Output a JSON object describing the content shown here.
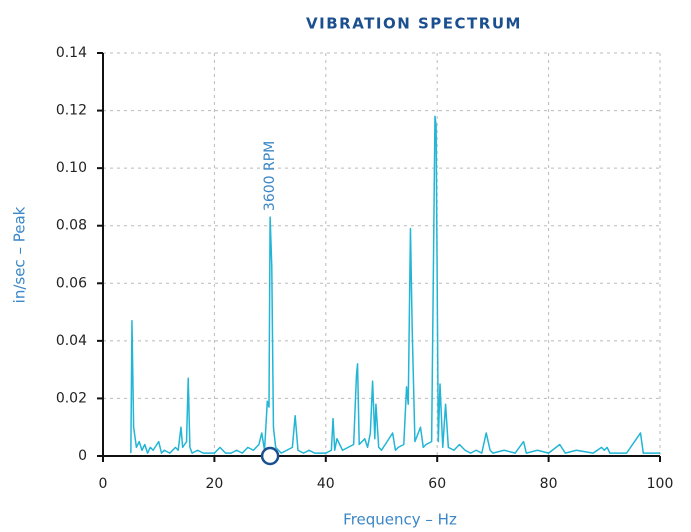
{
  "chart_data": {
    "type": "line",
    "title": "VIBRATION SPECTRUM",
    "xlabel": "Frequency – Hz",
    "ylabel": "in/sec – Peak",
    "color": "#22b5d6",
    "grid": true,
    "annotation": {
      "text": "3600 RPM",
      "x": 30
    },
    "xlim": [
      0,
      100
    ],
    "xticks": [
      0,
      20,
      40,
      60,
      80,
      100
    ],
    "ylim": [
      0,
      0.14
    ],
    "yticks": [
      0,
      0.02,
      0.04,
      0.06,
      0.08,
      {
        "value": 0.1,
        "label": "0.10"
      },
      0.12,
      0.14
    ],
    "x": [
      5,
      5.2,
      5.5,
      6,
      6.5,
      7,
      7.5,
      8,
      8.5,
      9,
      10,
      10.5,
      11,
      12,
      13,
      13.5,
      14,
      14.3,
      15,
      15.3,
      15.6,
      16,
      17,
      18,
      19,
      20,
      21,
      22,
      23,
      24,
      25,
      26,
      27,
      28,
      28.5,
      29,
      29.5,
      29.8,
      30,
      30.3,
      30.6,
      31,
      32,
      33,
      34,
      34.5,
      35,
      36,
      37,
      38,
      39,
      40,
      41,
      41.3,
      41.6,
      42,
      43,
      44,
      45,
      45.5,
      45.7,
      46,
      47,
      47.5,
      48,
      48.4,
      48.8,
      49,
      49.5,
      50,
      51,
      52,
      52.5,
      53,
      54,
      54.5,
      54.8,
      55.2,
      55.5,
      56,
      57,
      57.5,
      58,
      59,
      59.6,
      59.8,
      60.2,
      60.5,
      61,
      61.5,
      62,
      63,
      64,
      65,
      66,
      67,
      68,
      68.8,
      69.5,
      70,
      72,
      74,
      75.5,
      76,
      78,
      80,
      82,
      83,
      85,
      88,
      89.5,
      90,
      90.5,
      91,
      94,
      96.5,
      97,
      100
    ],
    "values": [
      0.001,
      0.047,
      0.01,
      0.003,
      0.005,
      0.002,
      0.004,
      0.001,
      0.003,
      0.002,
      0.005,
      0.001,
      0.002,
      0.001,
      0.003,
      0.002,
      0.01,
      0.003,
      0.005,
      0.027,
      0.003,
      0.001,
      0.002,
      0.001,
      0.001,
      0.001,
      0.003,
      0.001,
      0.001,
      0.002,
      0.001,
      0.003,
      0.002,
      0.004,
      0.008,
      0.002,
      0.019,
      0.017,
      0.083,
      0.066,
      0.01,
      0.003,
      0.001,
      0.002,
      0.003,
      0.014,
      0.002,
      0.001,
      0.002,
      0.001,
      0.001,
      0.001,
      0.002,
      0.013,
      0.002,
      0.006,
      0.002,
      0.003,
      0.004,
      0.028,
      0.032,
      0.004,
      0.006,
      0.003,
      0.008,
      0.026,
      0.006,
      0.018,
      0.003,
      0.002,
      0.005,
      0.008,
      0.002,
      0.003,
      0.004,
      0.024,
      0.018,
      0.079,
      0.045,
      0.005,
      0.01,
      0.003,
      0.004,
      0.005,
      0.118,
      0.115,
      0.005,
      0.025,
      0.003,
      0.018,
      0.003,
      0.002,
      0.004,
      0.002,
      0.001,
      0.002,
      0.001,
      0.008,
      0.002,
      0.001,
      0.002,
      0.001,
      0.005,
      0.001,
      0.002,
      0.001,
      0.004,
      0.001,
      0.002,
      0.001,
      0.003,
      0.002,
      0.003,
      0.001,
      0.001,
      0.008,
      0.001,
      0.001
    ]
  }
}
